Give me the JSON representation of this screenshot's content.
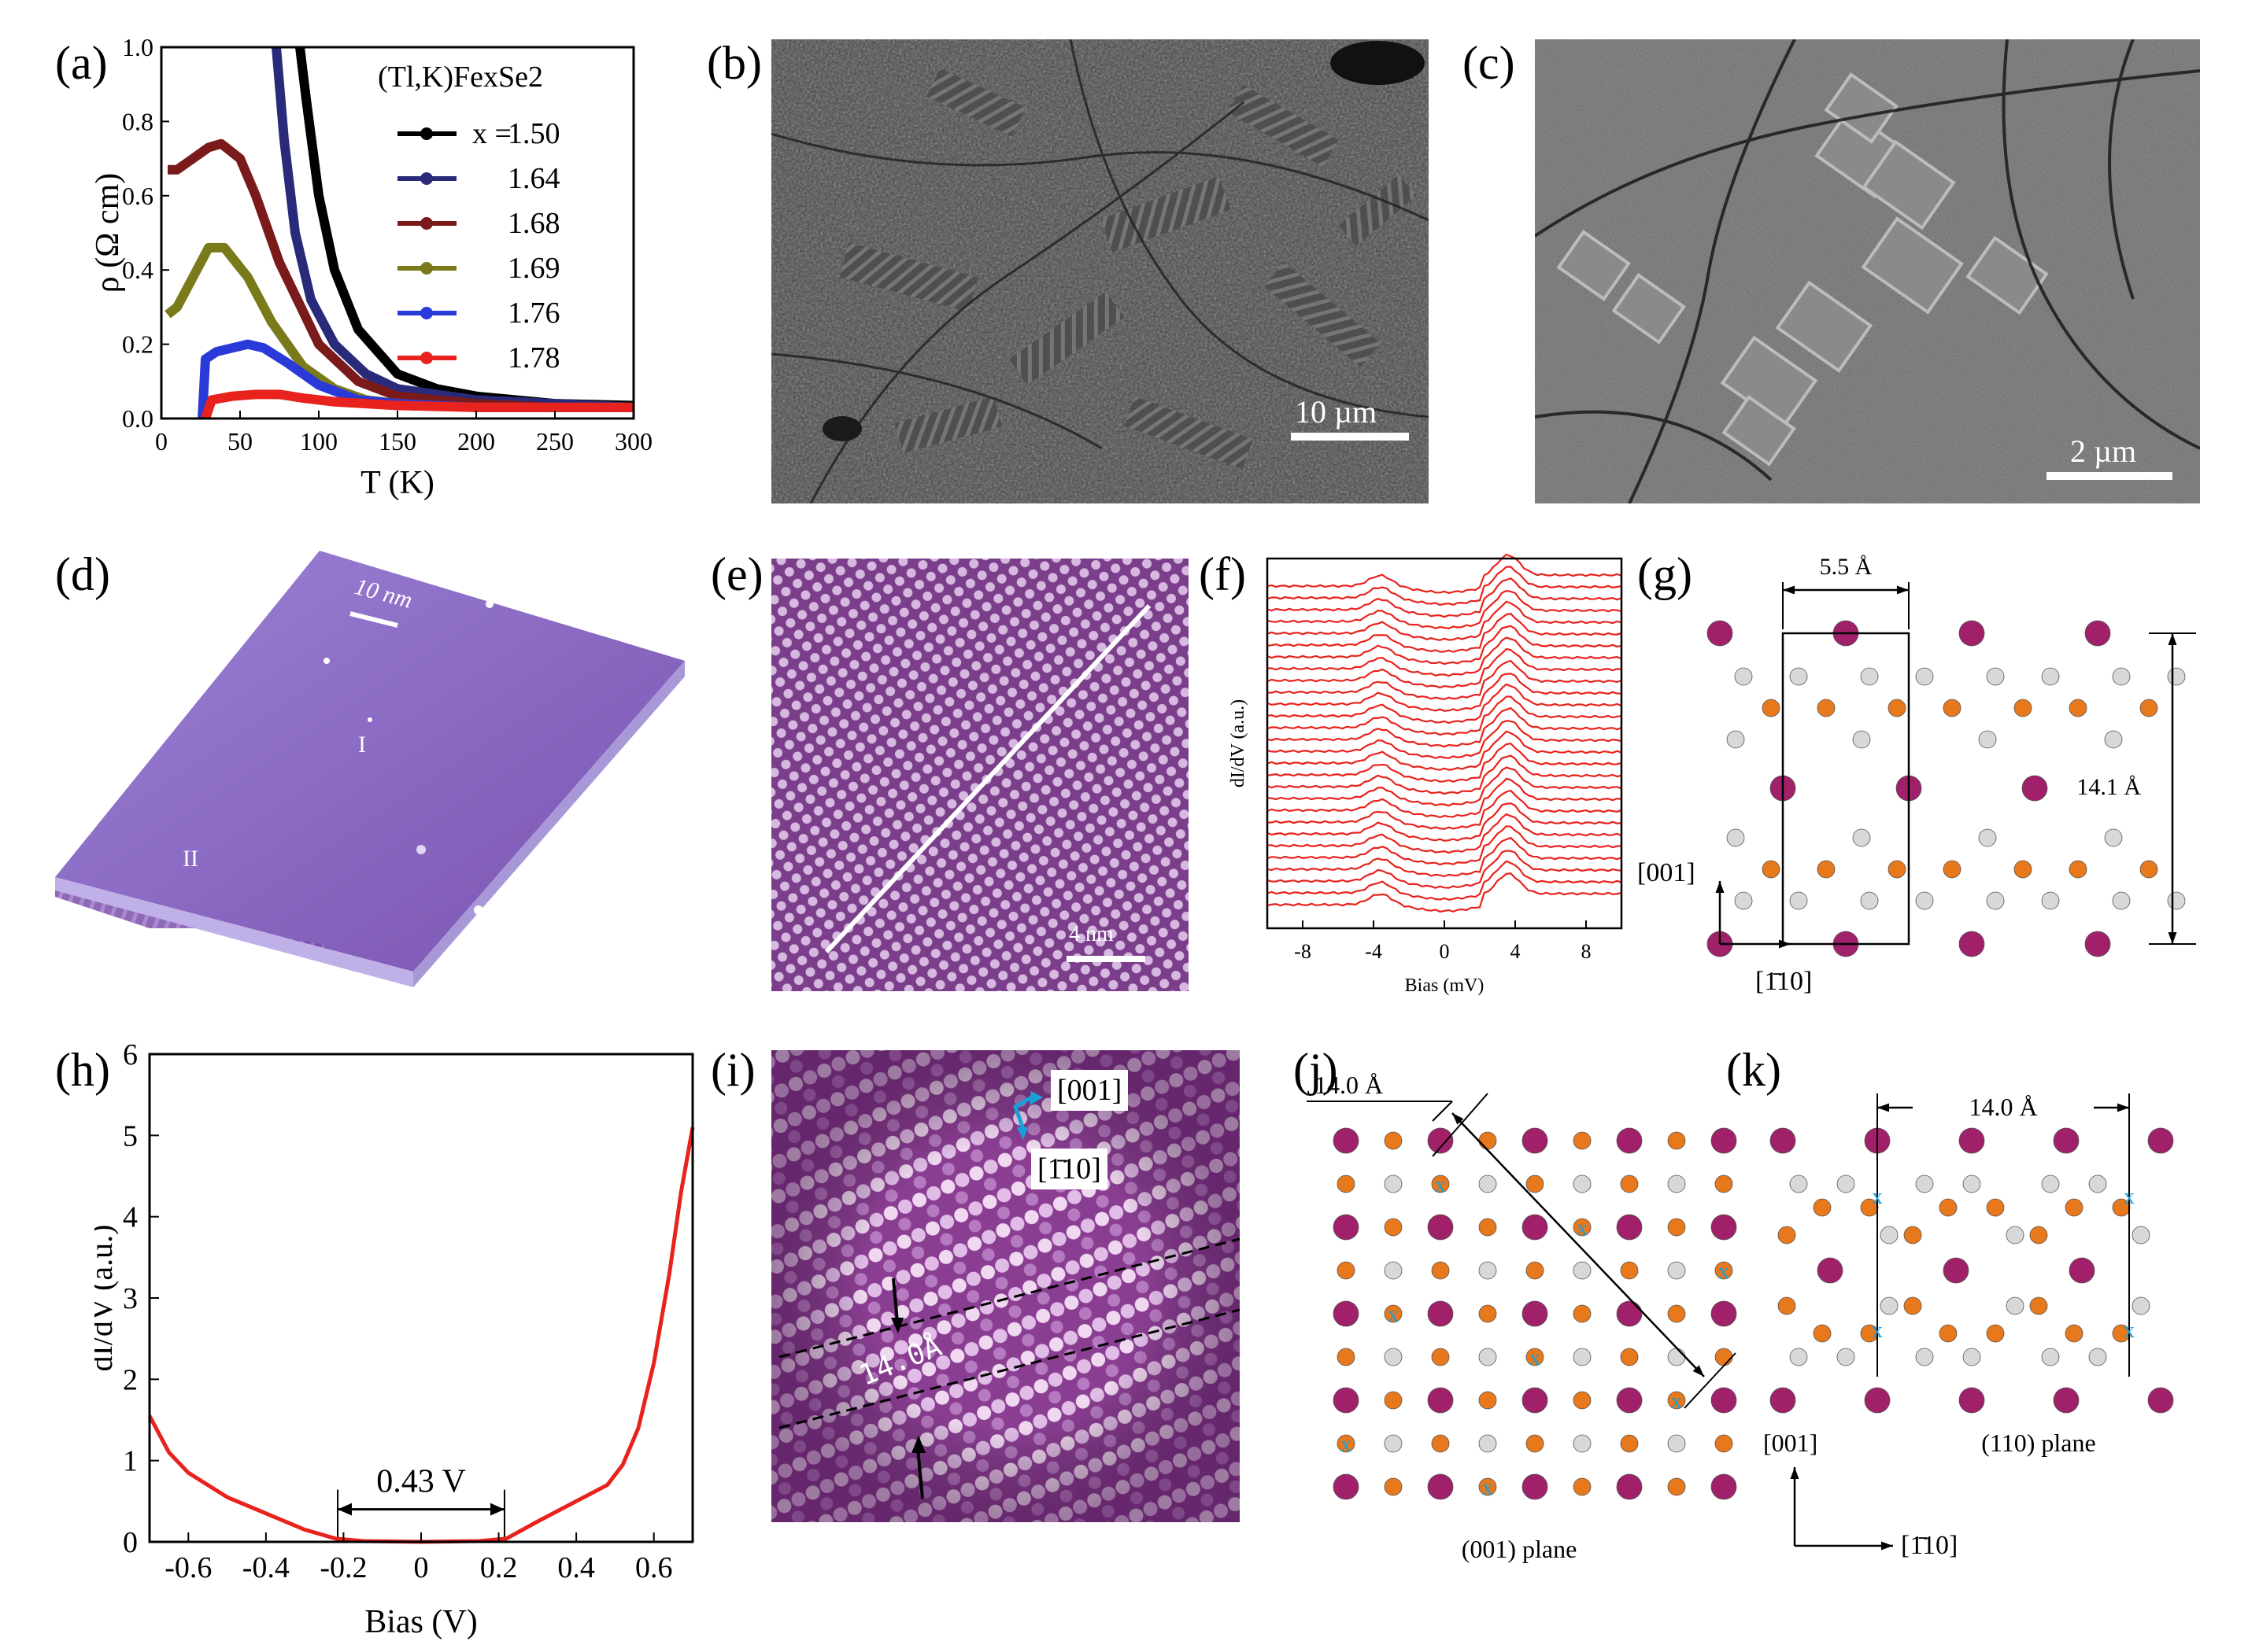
{
  "panels": {
    "a": {
      "label": "(a)"
    },
    "b": {
      "label": "(b)",
      "scale_bar": "10 µm"
    },
    "c": {
      "label": "(c)",
      "scale_bar": "2 µm"
    },
    "d": {
      "label": "(d)",
      "scale_bar": "10 nm",
      "region_1": "I",
      "region_2": "II"
    },
    "e": {
      "label": "(e)",
      "scale_bar": "4 nm"
    },
    "f": {
      "label": "(f)"
    },
    "g": {
      "label": "(g)",
      "dim_width": "5.5 Å",
      "dim_height": "14.1 Å",
      "axis_vertical": "[001]",
      "axis_horizontal": "[1̄10]"
    },
    "h": {
      "label": "(h)",
      "gap_label": "0.43 V"
    },
    "i": {
      "label": "(i)",
      "dir_1": "[001]",
      "dir_2": "[1̄10]",
      "spacing": "14.0Å"
    },
    "j": {
      "label": "(j)",
      "dim": "14.0 Å",
      "plane": "(001) plane",
      "vacancy_mark": "x"
    },
    "k": {
      "label": "(k)",
      "dim": "14.0 Å",
      "plane": "(110) plane",
      "axis_vertical": "[001]",
      "axis_horizontal": "[1̄10]",
      "vacancy_mark": "x"
    }
  },
  "colors": {
    "magenta_atom": "#a0206a",
    "orange_atom": "#e8781c",
    "white_atom": "#d8d8d8",
    "stm_purple": "#8a4a9a",
    "red_curve": "#e8221c",
    "cyan_mark": "#1aa0d8"
  },
  "chart_data": [
    {
      "id": "a",
      "type": "line",
      "xlabel": "T (K)",
      "ylabel": "ρ (Ω cm)",
      "xlim": [
        0,
        300
      ],
      "ylim": [
        0,
        1.0
      ],
      "xticks": [
        "0",
        "50",
        "100",
        "150",
        "200",
        "250",
        "300"
      ],
      "yticks": [
        "0.0",
        "0.2",
        "0.4",
        "0.6",
        "0.8",
        "1.0"
      ],
      "legend_title": "(Tl,K)FexSe2",
      "legend_prefix": "x =",
      "series": [
        {
          "name": "1.50",
          "color": "#000000",
          "x": [
            88,
            92,
            100,
            110,
            125,
            150,
            175,
            200,
            250,
            300
          ],
          "y": [
            1.0,
            0.86,
            0.6,
            0.4,
            0.24,
            0.12,
            0.08,
            0.06,
            0.04,
            0.035
          ]
        },
        {
          "name": "1.64",
          "color": "#2a2a7a",
          "x": [
            73,
            78,
            85,
            95,
            110,
            130,
            150,
            200,
            250,
            300
          ],
          "y": [
            1.0,
            0.75,
            0.5,
            0.32,
            0.2,
            0.12,
            0.08,
            0.05,
            0.04,
            0.03
          ]
        },
        {
          "name": "1.68",
          "color": "#7a1a1a",
          "x": [
            4,
            10,
            20,
            30,
            38,
            50,
            60,
            75,
            100,
            125,
            150,
            200,
            250,
            300
          ],
          "y": [
            0.67,
            0.67,
            0.7,
            0.73,
            0.74,
            0.7,
            0.6,
            0.42,
            0.2,
            0.1,
            0.06,
            0.04,
            0.03,
            0.03
          ]
        },
        {
          "name": "1.69",
          "color": "#7a7a1a",
          "x": [
            4,
            10,
            20,
            30,
            40,
            55,
            70,
            90,
            110,
            130,
            150,
            200,
            250,
            300
          ],
          "y": [
            0.28,
            0.3,
            0.38,
            0.46,
            0.46,
            0.38,
            0.26,
            0.14,
            0.08,
            0.05,
            0.04,
            0.03,
            0.03,
            0.03
          ]
        },
        {
          "name": "1.76",
          "color": "#2a3ad8",
          "x": [
            26,
            28,
            35,
            45,
            55,
            65,
            80,
            100,
            125,
            150,
            200,
            250,
            300
          ],
          "y": [
            0.0,
            0.16,
            0.18,
            0.19,
            0.2,
            0.19,
            0.15,
            0.09,
            0.05,
            0.04,
            0.03,
            0.03,
            0.03
          ]
        },
        {
          "name": "1.78",
          "color": "#e8221c",
          "x": [
            28,
            32,
            45,
            60,
            75,
            90,
            110,
            150,
            200,
            250,
            300
          ],
          "y": [
            0.0,
            0.05,
            0.06,
            0.065,
            0.065,
            0.055,
            0.045,
            0.035,
            0.03,
            0.03,
            0.03
          ]
        }
      ]
    },
    {
      "id": "f",
      "type": "line",
      "xlabel": "Bias (mV)",
      "ylabel": "dI/dV (a.u.)",
      "xlim": [
        -10,
        10
      ],
      "xticks": [
        "-8",
        "-4",
        "0",
        "4",
        "8"
      ],
      "n_curves": 28,
      "color": "#e8221c"
    },
    {
      "id": "h",
      "type": "line",
      "xlabel": "Bias (V)",
      "ylabel": "dI/dV (a.u.)",
      "xlim": [
        -0.7,
        0.7
      ],
      "ylim": [
        0,
        6
      ],
      "xticks": [
        "-0.6",
        "-0.4",
        "-0.2",
        "0",
        "0.2",
        "0.4",
        "0.6"
      ],
      "yticks": [
        "0",
        "1",
        "2",
        "3",
        "4",
        "5",
        "6"
      ],
      "series": [
        {
          "name": "",
          "color": "#e8221c",
          "x": [
            -0.7,
            -0.65,
            -0.6,
            -0.5,
            -0.4,
            -0.3,
            -0.22,
            -0.15,
            0,
            0.15,
            0.22,
            0.3,
            0.4,
            0.48,
            0.52,
            0.56,
            0.6,
            0.64,
            0.67,
            0.7
          ],
          "y": [
            1.55,
            1.1,
            0.85,
            0.55,
            0.35,
            0.15,
            0.04,
            0.01,
            0.0,
            0.01,
            0.04,
            0.25,
            0.5,
            0.7,
            0.95,
            1.4,
            2.2,
            3.3,
            4.3,
            5.1
          ]
        }
      ]
    }
  ]
}
